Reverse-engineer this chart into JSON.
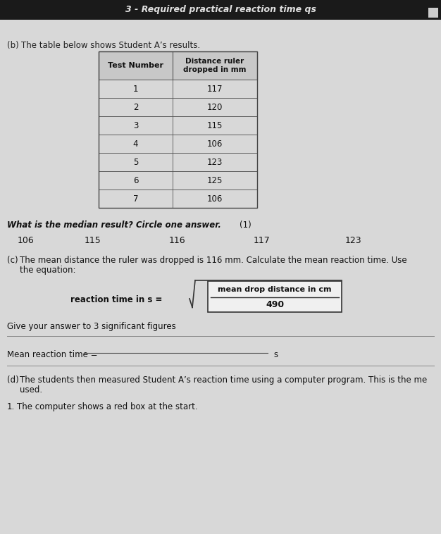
{
  "title": "3 - Required practical reaction time qs",
  "outer_bg": "#b0b0b0",
  "page_bg": "#d8d8d8",
  "header_bg": "#1a1a1a",
  "header_text_color": "#e0e0e0",
  "section_b_label": "(b)",
  "section_b_text": "The table below shows Student A’s results.",
  "table_headers": [
    "Test Number",
    "Distance ruler\ndropped in mm"
  ],
  "table_data": [
    [
      "1",
      "117"
    ],
    [
      "2",
      "120"
    ],
    [
      "3",
      "115"
    ],
    [
      "4",
      "106"
    ],
    [
      "5",
      "123"
    ],
    [
      "6",
      "125"
    ],
    [
      "7",
      "106"
    ]
  ],
  "median_question": "What is the median result? Circle one answer.",
  "median_mark": "(1)",
  "median_options": [
    "106",
    "115",
    "116",
    "117",
    "123"
  ],
  "median_x": [
    15,
    110,
    230,
    350,
    480
  ],
  "section_c_label": "(c)",
  "section_c_line1": "The mean distance the ruler was dropped is 116 mm. Calculate the mean reaction time. Use",
  "section_c_line2": "the equation:",
  "equation_label": "reaction time in s =",
  "equation_numerator": "mean drop distance in cm",
  "equation_denominator": "490",
  "equation_note": "Give your answer to 3 significant figures",
  "answer_label": "Mean reaction time = ",
  "answer_unit": "s",
  "section_d_label": "(d)",
  "section_d_line1": "The students then measured Student A’s reaction time using a computer program. This is the me",
  "section_d_line2": "used.",
  "last_bullet": "1",
  "last_line": "The computer shows a red box at the start."
}
